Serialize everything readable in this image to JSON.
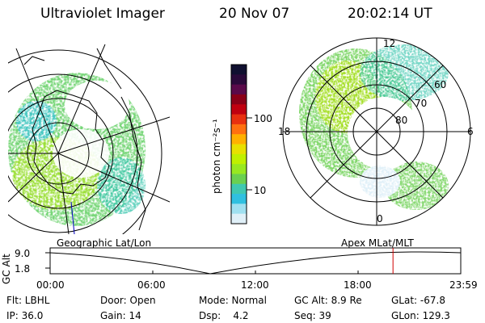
{
  "header": {
    "instrument": "Ultraviolet Imager",
    "date": "20 Nov 07",
    "time": "20:02:14 UT"
  },
  "colorbar": {
    "label": "photon cm⁻²s⁻¹",
    "ticks": [
      "100",
      "10"
    ],
    "colors": [
      "#101030",
      "#2a0a3a",
      "#5a0a4a",
      "#8a0018",
      "#c00010",
      "#e83010",
      "#ff7010",
      "#ffb000",
      "#e8e000",
      "#c0f000",
      "#98e820",
      "#6ad050",
      "#40c8b0",
      "#30c0e0",
      "#a0e0f0",
      "#e0f0f8"
    ]
  },
  "polar_plot": {
    "lat_labels": [
      "60",
      "70",
      "80"
    ],
    "mlt_labels": [
      "12",
      "18",
      "6",
      "0"
    ]
  },
  "timeline": {
    "left_label": "Geographic Lat/Lon",
    "right_label": "Apex MLat/MLT",
    "axis_title": "GC Alt",
    "y_ticks": [
      "9.0",
      "1.8"
    ],
    "time_ticks": [
      "00:00",
      "06:00",
      "12:00",
      "18:00",
      "23:59"
    ],
    "current_time_fraction": 0.835,
    "marker_color": "#d00000"
  },
  "info": {
    "row1": [
      "Flt: LBHL",
      "Door: Open",
      "Mode: Normal",
      "GC Alt: 8.9 Re",
      "GLat: -67.8"
    ],
    "row2": [
      "IP: 36.0",
      "Gain: 14",
      "Dsp:    4.2",
      "Seq: 39",
      "GLon: 129.3"
    ]
  }
}
